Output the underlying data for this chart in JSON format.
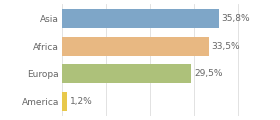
{
  "categories": [
    "Asia",
    "Africa",
    "Europa",
    "America"
  ],
  "values": [
    35.8,
    33.5,
    29.5,
    1.2
  ],
  "labels": [
    "35,8%",
    "33,5%",
    "29,5%",
    "1,2%"
  ],
  "bar_colors": [
    "#7ea6c8",
    "#e8b882",
    "#adc17a",
    "#e8c84a"
  ],
  "background_color": "#ffffff",
  "xlim": [
    0,
    42
  ],
  "bar_height": 0.68,
  "label_fontsize": 6.5,
  "tick_fontsize": 6.5,
  "grid_color": "#dddddd",
  "text_color": "#666666"
}
